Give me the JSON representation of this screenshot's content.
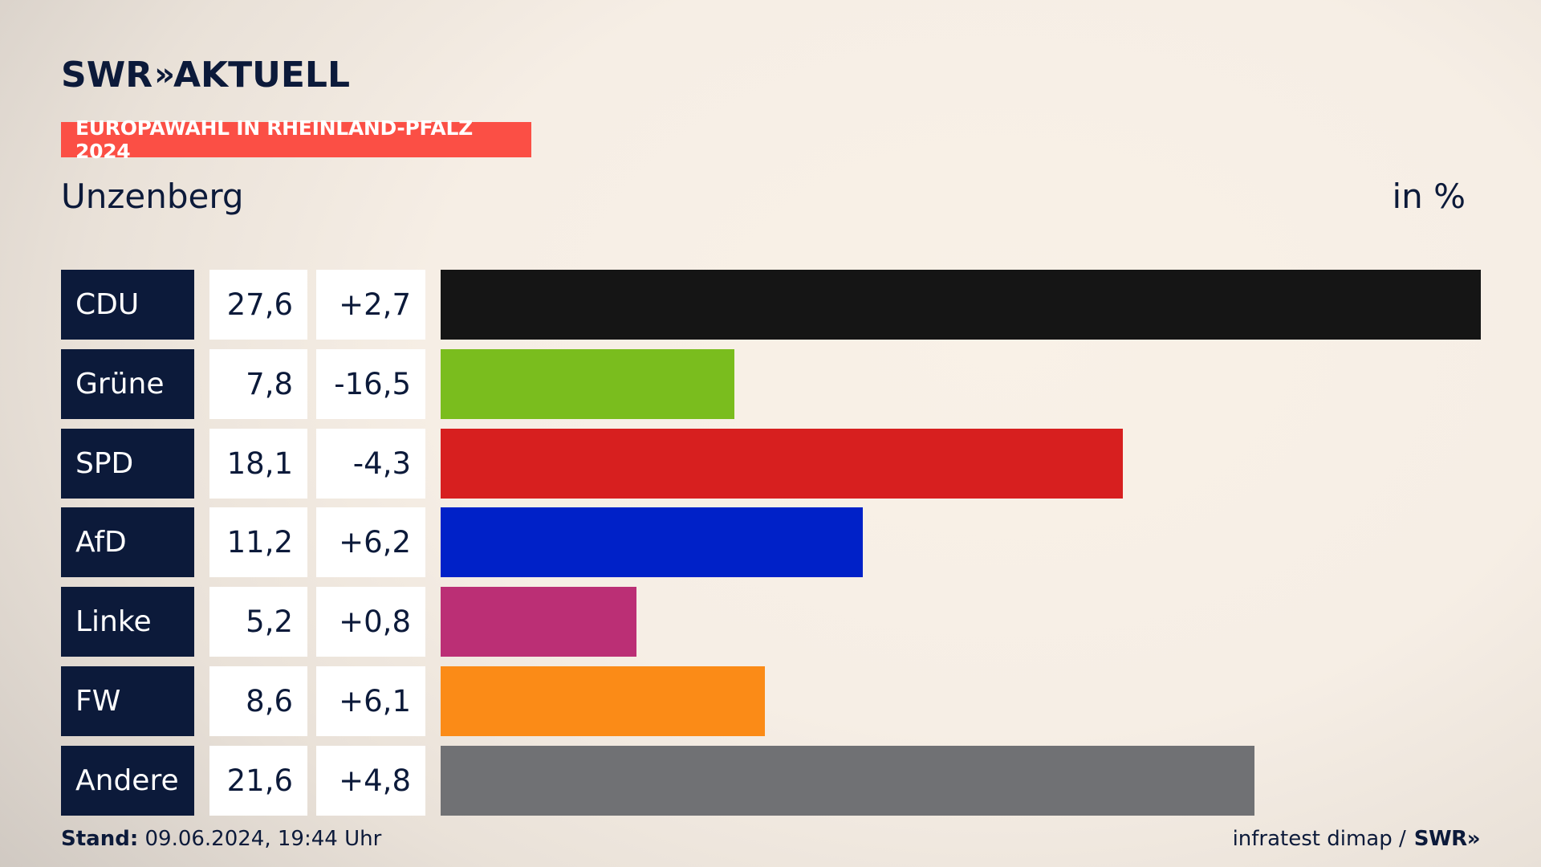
{
  "header": {
    "logo_brand": "SWR",
    "logo_chevrons": "»",
    "logo_title": "AKTUELL",
    "banner": "EUROPAWAHL IN RHEINLAND-PFALZ 2024",
    "region": "Unzenberg",
    "unit": "in %"
  },
  "chart_data": {
    "type": "bar",
    "orientation": "horizontal",
    "title": "EUROPAWAHL IN RHEINLAND-PFALZ 2024",
    "subtitle": "Unzenberg",
    "unit": "in %",
    "categories": [
      "CDU",
      "Grüne",
      "SPD",
      "AfD",
      "Linke",
      "FW",
      "Andere"
    ],
    "values": [
      27.6,
      7.8,
      18.1,
      11.2,
      5.2,
      8.6,
      21.6
    ],
    "value_labels": [
      "27,6",
      "7,8",
      "18,1",
      "11,2",
      "5,2",
      "8,6",
      "21,6"
    ],
    "diff_labels": [
      "+2,7",
      "-16,5",
      "-4,3",
      "+6,2",
      "+0,8",
      "+6,1",
      "+4,8"
    ],
    "colors": [
      "#151515",
      "#7abd1e",
      "#d71f1f",
      "#0021c8",
      "#bb2f75",
      "#fb8b17",
      "#707174"
    ],
    "xlim": [
      0,
      27.6
    ]
  },
  "footer": {
    "stand_label": "Stand:",
    "stand_value": " 09.06.2024, 19:44 Uhr",
    "source": "infratest dimap /",
    "source_brand": "SWR»"
  }
}
